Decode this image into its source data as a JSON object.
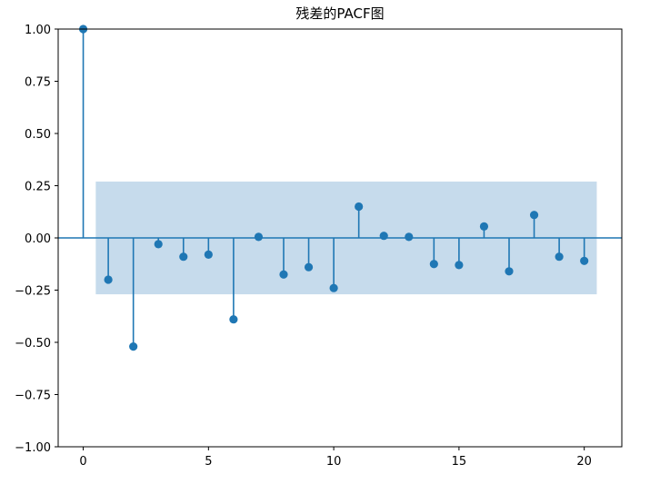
{
  "chart_data": {
    "type": "stem",
    "title": "残差的PACF图",
    "xlabel": "",
    "ylabel": "",
    "xlim": [
      -1,
      21.5
    ],
    "ylim": [
      -1.0,
      1.0
    ],
    "x_ticks": [
      0,
      5,
      10,
      15,
      20
    ],
    "x_tick_labels": [
      "0",
      "5",
      "10",
      "15",
      "20"
    ],
    "y_ticks": [
      1.0,
      0.75,
      0.5,
      0.25,
      0.0,
      -0.25,
      -0.5,
      -0.75,
      -1.0
    ],
    "y_tick_labels": [
      "1.00",
      "0.75",
      "0.50",
      "0.25",
      "0.00",
      "−0.25",
      "−0.50",
      "−0.75",
      "−1.00"
    ],
    "grid": false,
    "confidence_band": {
      "x_from": 0.5,
      "x_to": 20.5,
      "lower": -0.27,
      "upper": 0.27,
      "color": "#c6dbec"
    },
    "series": [
      {
        "color": "#1f77b4",
        "x": [
          0,
          1,
          2,
          3,
          4,
          5,
          6,
          7,
          8,
          9,
          10,
          11,
          12,
          13,
          14,
          15,
          16,
          17,
          18,
          19,
          20
        ],
        "values": [
          1.0,
          -0.2,
          -0.52,
          -0.03,
          -0.09,
          -0.08,
          -0.39,
          0.005,
          -0.175,
          -0.14,
          -0.24,
          0.15,
          0.01,
          0.005,
          -0.125,
          -0.13,
          0.055,
          -0.16,
          0.11,
          -0.09,
          -0.11
        ]
      }
    ]
  }
}
